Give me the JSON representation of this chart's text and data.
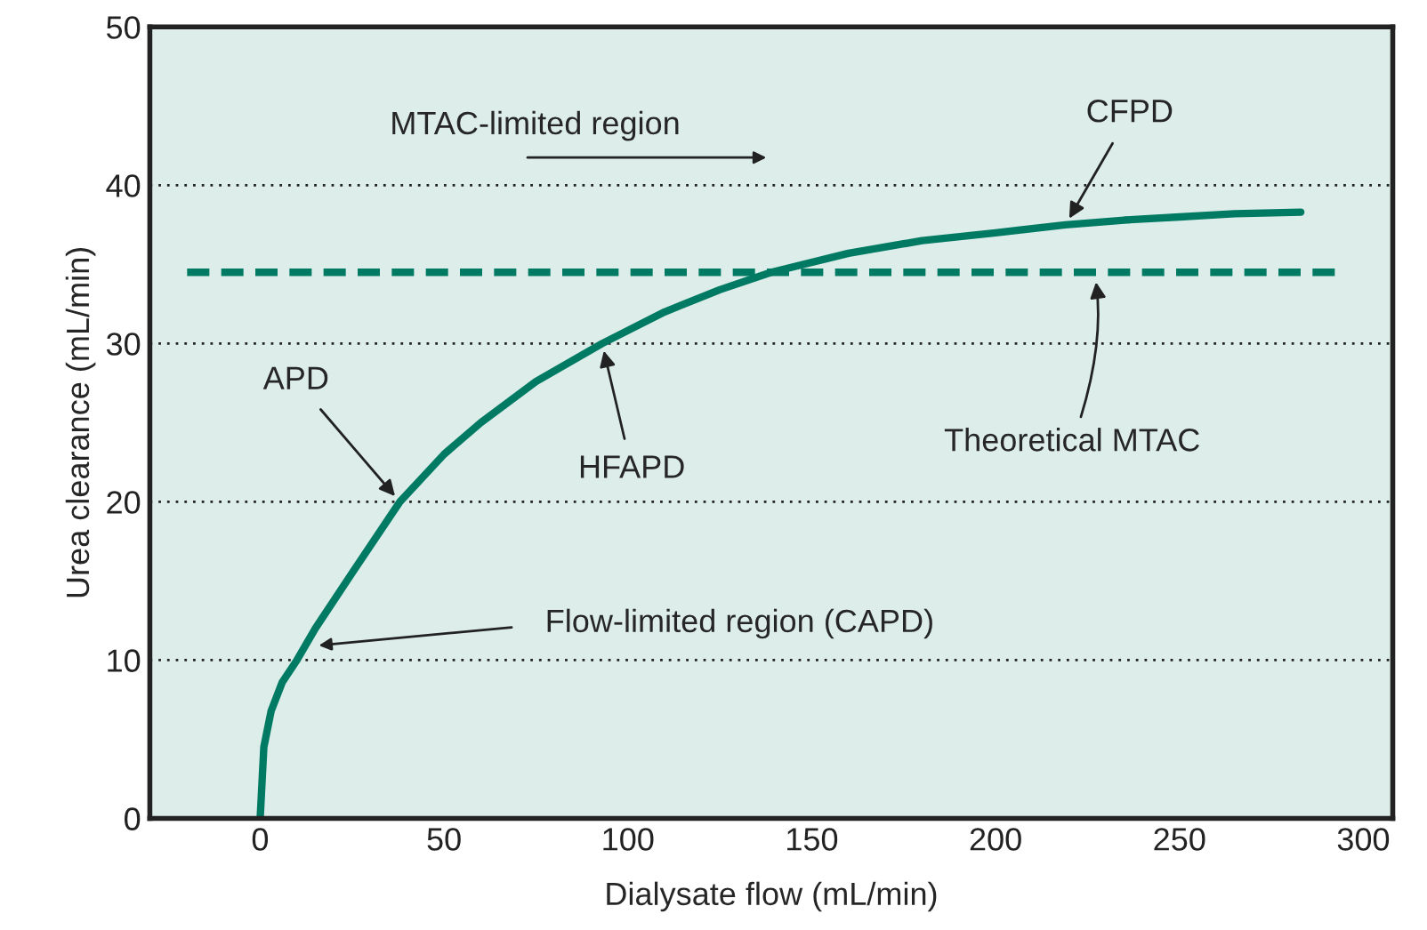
{
  "chart_data": {
    "type": "line",
    "xlabel": "Dialysate flow (mL/min)",
    "ylabel": "Urea clearance (mL/min)",
    "x": [
      0,
      1,
      3,
      6,
      10,
      15,
      25,
      38,
      50,
      60,
      75,
      93,
      110,
      125,
      139,
      160,
      180,
      200,
      219,
      235,
      250,
      265,
      283
    ],
    "series": [
      {
        "color": "#007a63",
        "values": [
          0,
          4.5,
          6.8,
          8.6,
          10,
          12,
          15.5,
          20,
          23,
          25,
          27.6,
          30,
          32,
          33.4,
          34.5,
          35.7,
          36.5,
          37,
          37.5,
          37.8,
          38,
          38.2,
          38.3
        ]
      }
    ],
    "xlim": [
      -30,
      308
    ],
    "ylim": [
      0,
      50
    ],
    "xticks": [
      0,
      50,
      100,
      150,
      200,
      250,
      300
    ],
    "yticks": [
      0,
      10,
      20,
      30,
      40,
      50
    ],
    "grid": "y",
    "line_style": "solid",
    "marker": "none",
    "ref_lines": [
      {
        "axis": "y",
        "value": 34.5,
        "label": "Theoretical MTAC",
        "color": "#007a63",
        "line_style": "dashed"
      }
    ],
    "annotations": [
      "MTAC-limited region",
      {
        "text": "CFPD",
        "x": 219,
        "y": 37.5
      },
      {
        "text": "APD",
        "x": 38,
        "y": 20
      },
      {
        "text": "HFAPD",
        "x": 93,
        "y": 30
      },
      "Flow-limited region (CAPD)"
    ]
  }
}
